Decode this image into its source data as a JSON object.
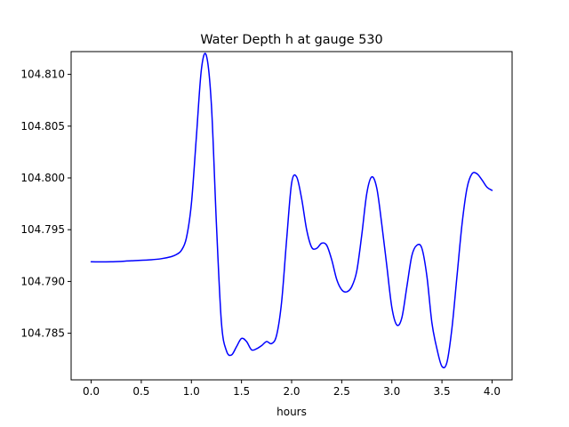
{
  "chart_data": {
    "type": "line",
    "title": "Water Depth h at gauge 530",
    "xlabel": "hours",
    "ylabel": "",
    "xlim": [
      -0.2,
      4.2
    ],
    "ylim": [
      104.7805,
      104.8122
    ],
    "grid": false,
    "x_ticks": [
      0.0,
      0.5,
      1.0,
      1.5,
      2.0,
      2.5,
      3.0,
      3.5,
      4.0
    ],
    "x_tick_labels": [
      "0.0",
      "0.5",
      "1.0",
      "1.5",
      "2.0",
      "2.5",
      "3.0",
      "3.5",
      "4.0"
    ],
    "y_ticks": [
      104.785,
      104.79,
      104.795,
      104.8,
      104.805,
      104.81
    ],
    "y_tick_labels": [
      "104.785",
      "104.790",
      "104.795",
      "104.800",
      "104.805",
      "104.810"
    ],
    "series": [
      {
        "color": "#0000ff",
        "x": [
          0.0,
          0.2,
          0.4,
          0.6,
          0.7,
          0.8,
          0.85,
          0.9,
          0.95,
          1.0,
          1.05,
          1.1,
          1.15,
          1.2,
          1.25,
          1.3,
          1.35,
          1.4,
          1.45,
          1.5,
          1.55,
          1.6,
          1.65,
          1.7,
          1.75,
          1.8,
          1.85,
          1.9,
          1.95,
          2.0,
          2.05,
          2.1,
          2.15,
          2.2,
          2.25,
          2.3,
          2.35,
          2.4,
          2.45,
          2.5,
          2.55,
          2.6,
          2.65,
          2.7,
          2.75,
          2.8,
          2.85,
          2.9,
          2.95,
          3.0,
          3.05,
          3.1,
          3.15,
          3.2,
          3.25,
          3.3,
          3.35,
          3.4,
          3.45,
          3.5,
          3.55,
          3.6,
          3.65,
          3.7,
          3.75,
          3.8,
          3.85,
          3.9,
          3.95,
          4.0
        ],
        "y": [
          104.7919,
          104.7919,
          104.792,
          104.7921,
          104.7922,
          104.7924,
          104.7926,
          104.793,
          104.7942,
          104.7975,
          104.804,
          104.8105,
          104.8118,
          104.807,
          104.7955,
          104.786,
          104.7833,
          104.7829,
          104.7837,
          104.7845,
          104.7842,
          104.7834,
          104.7835,
          104.7838,
          104.7842,
          104.784,
          104.7848,
          104.788,
          104.794,
          104.7995,
          104.8001,
          104.798,
          104.795,
          104.7933,
          104.7932,
          104.7937,
          104.7935,
          104.7921,
          104.7902,
          104.7892,
          104.789,
          104.7895,
          104.791,
          104.7945,
          104.7985,
          104.8001,
          104.799,
          104.7955,
          104.7915,
          104.7875,
          104.7858,
          104.7865,
          104.7895,
          104.7925,
          104.7935,
          104.7932,
          104.7905,
          104.786,
          104.7835,
          104.7818,
          104.7822,
          104.7855,
          104.7905,
          104.7955,
          104.799,
          104.8004,
          104.8004,
          104.7998,
          104.7991,
          104.7988
        ]
      }
    ]
  }
}
